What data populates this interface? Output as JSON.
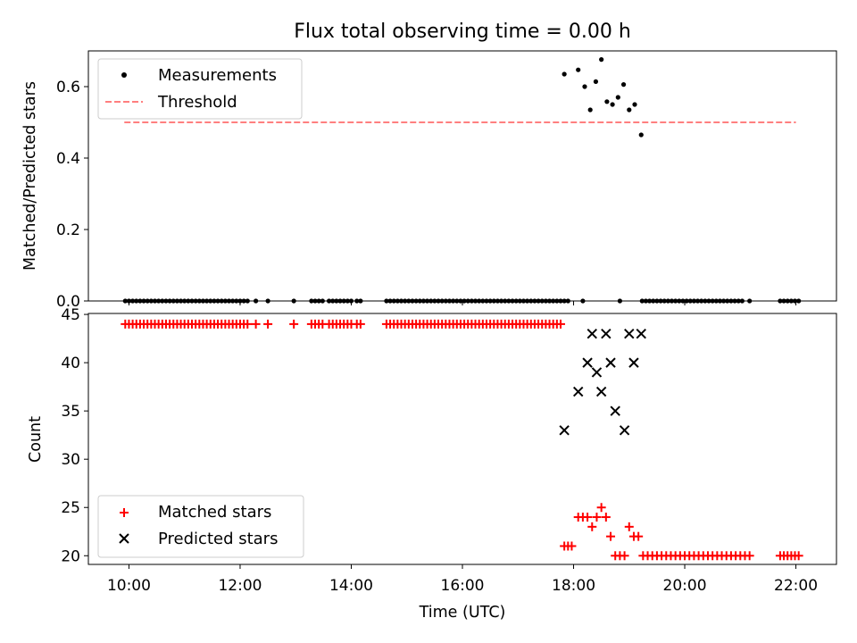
{
  "chart_data": [
    {
      "type": "scatter",
      "title": "Flux total observing time = 0.00 h",
      "xlabel": "",
      "ylabel": "Matched/Predicted stars",
      "xlim_hours": [
        9.27,
        22.73
      ],
      "ylim": [
        0.0,
        0.7
      ],
      "yticks": [
        0.0,
        0.2,
        0.4,
        0.6
      ],
      "ytick_labels": [
        "0.0",
        "0.2",
        "0.4",
        "0.6"
      ],
      "legend": {
        "placement": "upper-left",
        "entries": [
          "Measurements",
          "Threshold"
        ]
      },
      "threshold": {
        "name": "Threshold",
        "y": 0.5,
        "x_start": "09:55",
        "x_end": "22:00",
        "color": "#ff7f7f",
        "style": "dashed"
      },
      "series": [
        {
          "name": "Measurements",
          "color": "#000000",
          "marker": "dot",
          "x": [
            "09:56",
            "10:00",
            "10:04",
            "10:08",
            "10:12",
            "10:16",
            "10:20",
            "10:24",
            "10:28",
            "10:32",
            "10:36",
            "10:40",
            "10:44",
            "10:48",
            "10:52",
            "10:56",
            "11:00",
            "11:04",
            "11:08",
            "11:12",
            "11:16",
            "11:20",
            "11:24",
            "11:28",
            "11:32",
            "11:36",
            "11:40",
            "11:44",
            "11:48",
            "11:52",
            "11:56",
            "12:00",
            "12:04",
            "12:08",
            "12:17",
            "12:30",
            "12:58",
            "13:17",
            "13:21",
            "13:25",
            "13:29",
            "13:36",
            "13:40",
            "13:44",
            "13:48",
            "13:52",
            "13:56",
            "14:00",
            "14:06",
            "14:10",
            "14:38",
            "14:42",
            "14:46",
            "14:50",
            "14:54",
            "14:58",
            "15:02",
            "15:06",
            "15:10",
            "15:14",
            "15:18",
            "15:22",
            "15:26",
            "15:30",
            "15:34",
            "15:38",
            "15:42",
            "15:46",
            "15:50",
            "15:54",
            "15:58",
            "16:02",
            "16:06",
            "16:10",
            "16:14",
            "16:18",
            "16:22",
            "16:26",
            "16:30",
            "16:34",
            "16:38",
            "16:42",
            "16:46",
            "16:50",
            "16:54",
            "16:58",
            "17:02",
            "17:06",
            "17:10",
            "17:14",
            "17:18",
            "17:22",
            "17:26",
            "17:30",
            "17:34",
            "17:38",
            "17:42",
            "17:46",
            "17:50",
            "17:54",
            "18:10",
            "18:50",
            "19:14",
            "19:18",
            "19:22",
            "19:26",
            "19:30",
            "19:34",
            "19:38",
            "19:42",
            "19:46",
            "19:50",
            "19:54",
            "19:58",
            "20:02",
            "20:06",
            "20:10",
            "20:14",
            "20:18",
            "20:22",
            "20:26",
            "20:30",
            "20:34",
            "20:38",
            "20:42",
            "20:46",
            "20:50",
            "20:54",
            "20:58",
            "21:02",
            "21:10",
            "21:43",
            "21:47",
            "21:51",
            "21:55",
            "21:59",
            "22:03",
            "17:50",
            "18:05",
            "18:12",
            "18:18",
            "18:24",
            "18:30",
            "18:36",
            "18:42",
            "18:48",
            "18:54",
            "19:00",
            "19:06",
            "19:13"
          ],
          "y": [
            0.0,
            0.0,
            0.0,
            0.0,
            0.0,
            0.0,
            0.0,
            0.0,
            0.0,
            0.0,
            0.0,
            0.0,
            0.0,
            0.0,
            0.0,
            0.0,
            0.0,
            0.0,
            0.0,
            0.0,
            0.0,
            0.0,
            0.0,
            0.0,
            0.0,
            0.0,
            0.0,
            0.0,
            0.0,
            0.0,
            0.0,
            0.0,
            0.0,
            0.0,
            0.0,
            0.0,
            0.0,
            0.0,
            0.0,
            0.0,
            0.0,
            0.0,
            0.0,
            0.0,
            0.0,
            0.0,
            0.0,
            0.0,
            0.0,
            0.0,
            0.0,
            0.0,
            0.0,
            0.0,
            0.0,
            0.0,
            0.0,
            0.0,
            0.0,
            0.0,
            0.0,
            0.0,
            0.0,
            0.0,
            0.0,
            0.0,
            0.0,
            0.0,
            0.0,
            0.0,
            0.0,
            0.0,
            0.0,
            0.0,
            0.0,
            0.0,
            0.0,
            0.0,
            0.0,
            0.0,
            0.0,
            0.0,
            0.0,
            0.0,
            0.0,
            0.0,
            0.0,
            0.0,
            0.0,
            0.0,
            0.0,
            0.0,
            0.0,
            0.0,
            0.0,
            0.0,
            0.0,
            0.0,
            0.0,
            0.0,
            0.0,
            0.0,
            0.0,
            0.0,
            0.0,
            0.0,
            0.0,
            0.0,
            0.0,
            0.0,
            0.0,
            0.0,
            0.0,
            0.0,
            0.0,
            0.0,
            0.0,
            0.0,
            0.0,
            0.0,
            0.0,
            0.0,
            0.0,
            0.0,
            0.0,
            0.0,
            0.0,
            0.0,
            0.0,
            0.0,
            0.0,
            0.0,
            0.0,
            0.0,
            0.0,
            0.0,
            0.0,
            0.635,
            0.647,
            0.6,
            0.535,
            0.614,
            0.676,
            0.558,
            0.55,
            0.57,
            0.606,
            0.535,
            0.55,
            0.465
          ]
        }
      ]
    },
    {
      "type": "scatter",
      "title": "",
      "xlabel": "Time (UTC)",
      "ylabel": "Count",
      "xlim_hours": [
        9.27,
        22.73
      ],
      "ylim": [
        19.1,
        45.1
      ],
      "yticks": [
        20,
        25,
        30,
        35,
        40,
        45
      ],
      "ytick_labels": [
        "20",
        "25",
        "30",
        "35",
        "40",
        "45"
      ],
      "xticks_hours": [
        10,
        12,
        14,
        16,
        18,
        20,
        22
      ],
      "xtick_labels": [
        "10:00",
        "12:00",
        "14:00",
        "16:00",
        "18:00",
        "20:00",
        "22:00"
      ],
      "legend": {
        "placement": "lower-left",
        "entries": [
          "Matched stars",
          "Predicted stars"
        ]
      },
      "series": [
        {
          "name": "Matched stars",
          "color": "#ff0000",
          "marker": "plus",
          "x": [
            "09:56",
            "10:00",
            "10:04",
            "10:08",
            "10:12",
            "10:16",
            "10:20",
            "10:24",
            "10:28",
            "10:32",
            "10:36",
            "10:40",
            "10:44",
            "10:48",
            "10:52",
            "10:56",
            "11:00",
            "11:04",
            "11:08",
            "11:12",
            "11:16",
            "11:20",
            "11:24",
            "11:28",
            "11:32",
            "11:36",
            "11:40",
            "11:44",
            "11:48",
            "11:52",
            "11:56",
            "12:00",
            "12:04",
            "12:08",
            "12:17",
            "12:30",
            "12:58",
            "13:17",
            "13:21",
            "13:25",
            "13:29",
            "13:36",
            "13:40",
            "13:44",
            "13:48",
            "13:52",
            "13:56",
            "14:00",
            "14:06",
            "14:10",
            "14:38",
            "14:42",
            "14:46",
            "14:50",
            "14:54",
            "14:58",
            "15:02",
            "15:06",
            "15:10",
            "15:14",
            "15:18",
            "15:22",
            "15:26",
            "15:30",
            "15:34",
            "15:38",
            "15:42",
            "15:46",
            "15:50",
            "15:54",
            "15:58",
            "16:02",
            "16:06",
            "16:10",
            "16:14",
            "16:18",
            "16:22",
            "16:26",
            "16:30",
            "16:34",
            "16:38",
            "16:42",
            "16:46",
            "16:50",
            "16:54",
            "16:58",
            "17:02",
            "17:06",
            "17:10",
            "17:14",
            "17:18",
            "17:22",
            "17:26",
            "17:30",
            "17:34",
            "17:38",
            "17:42",
            "17:46",
            "17:50",
            "17:54",
            "17:58",
            "18:05",
            "18:10",
            "18:15",
            "18:20",
            "18:25",
            "18:30",
            "18:35",
            "18:40",
            "18:45",
            "18:50",
            "18:55",
            "19:00",
            "19:05",
            "19:10",
            "19:15",
            "19:20",
            "19:25",
            "19:30",
            "19:35",
            "19:40",
            "19:45",
            "19:50",
            "19:55",
            "20:00",
            "20:05",
            "20:10",
            "20:15",
            "20:20",
            "20:25",
            "20:30",
            "20:35",
            "20:40",
            "20:45",
            "20:50",
            "20:55",
            "21:00",
            "21:05",
            "21:10",
            "21:43",
            "21:47",
            "21:51",
            "21:55",
            "21:59",
            "22:03"
          ],
          "y": [
            44,
            44,
            44,
            44,
            44,
            44,
            44,
            44,
            44,
            44,
            44,
            44,
            44,
            44,
            44,
            44,
            44,
            44,
            44,
            44,
            44,
            44,
            44,
            44,
            44,
            44,
            44,
            44,
            44,
            44,
            44,
            44,
            44,
            44,
            44,
            44,
            44,
            44,
            44,
            44,
            44,
            44,
            44,
            44,
            44,
            44,
            44,
            44,
            44,
            44,
            44,
            44,
            44,
            44,
            44,
            44,
            44,
            44,
            44,
            44,
            44,
            44,
            44,
            44,
            44,
            44,
            44,
            44,
            44,
            44,
            44,
            44,
            44,
            44,
            44,
            44,
            44,
            44,
            44,
            44,
            44,
            44,
            44,
            44,
            44,
            44,
            44,
            44,
            44,
            44,
            44,
            44,
            44,
            44,
            44,
            44,
            44,
            44,
            21,
            21,
            21,
            24,
            24,
            24,
            23,
            24,
            25,
            24,
            22,
            20,
            20,
            20,
            23,
            22,
            22,
            20,
            20,
            20,
            20,
            20,
            20,
            20,
            20,
            20,
            20,
            20,
            20,
            20,
            20,
            20,
            20,
            20,
            20,
            20,
            20,
            20,
            20,
            20,
            20,
            20,
            20,
            20,
            20,
            20,
            20
          ]
        },
        {
          "name": "Predicted stars",
          "color": "#000000",
          "marker": "x",
          "x": [
            "17:50",
            "18:05",
            "18:15",
            "18:20",
            "18:25",
            "18:30",
            "18:35",
            "18:40",
            "18:45",
            "18:55",
            "19:00",
            "19:05",
            "19:13"
          ],
          "y": [
            33,
            37,
            40,
            43,
            39,
            37,
            43,
            40,
            35,
            33,
            43,
            40,
            43
          ]
        }
      ]
    }
  ]
}
